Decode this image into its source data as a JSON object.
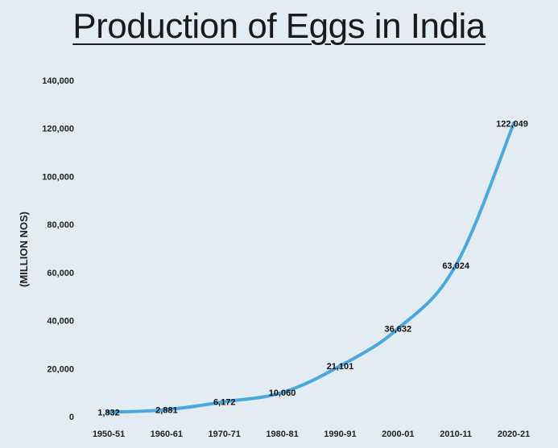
{
  "chart_data": {
    "type": "line",
    "title": "Production of Eggs in India",
    "ylabel": "(MILLION NOS)",
    "xlabel": "",
    "categories": [
      "1950-51",
      "1960-61",
      "1970-71",
      "1980-81",
      "1990-91",
      "2000-01",
      "2010-11",
      "2020-21"
    ],
    "series": [
      {
        "values": [
          1832,
          2881,
          6172,
          10060,
          21101,
          36632,
          63024,
          122049
        ],
        "labels": [
          "1,832",
          "2,881",
          "6,172",
          "10,060",
          "21,101",
          "36,632",
          "63,024",
          "122,049"
        ]
      }
    ],
    "ylim": [
      0,
      140000
    ],
    "yticks": [
      0,
      20000,
      40000,
      60000,
      80000,
      100000,
      120000,
      140000
    ],
    "ytick_labels": [
      "0",
      "20,000",
      "40,000",
      "60,000",
      "80,000",
      "100,000",
      "120,000",
      "140,000"
    ],
    "grid": false,
    "line_color": "#4aa8dc"
  }
}
